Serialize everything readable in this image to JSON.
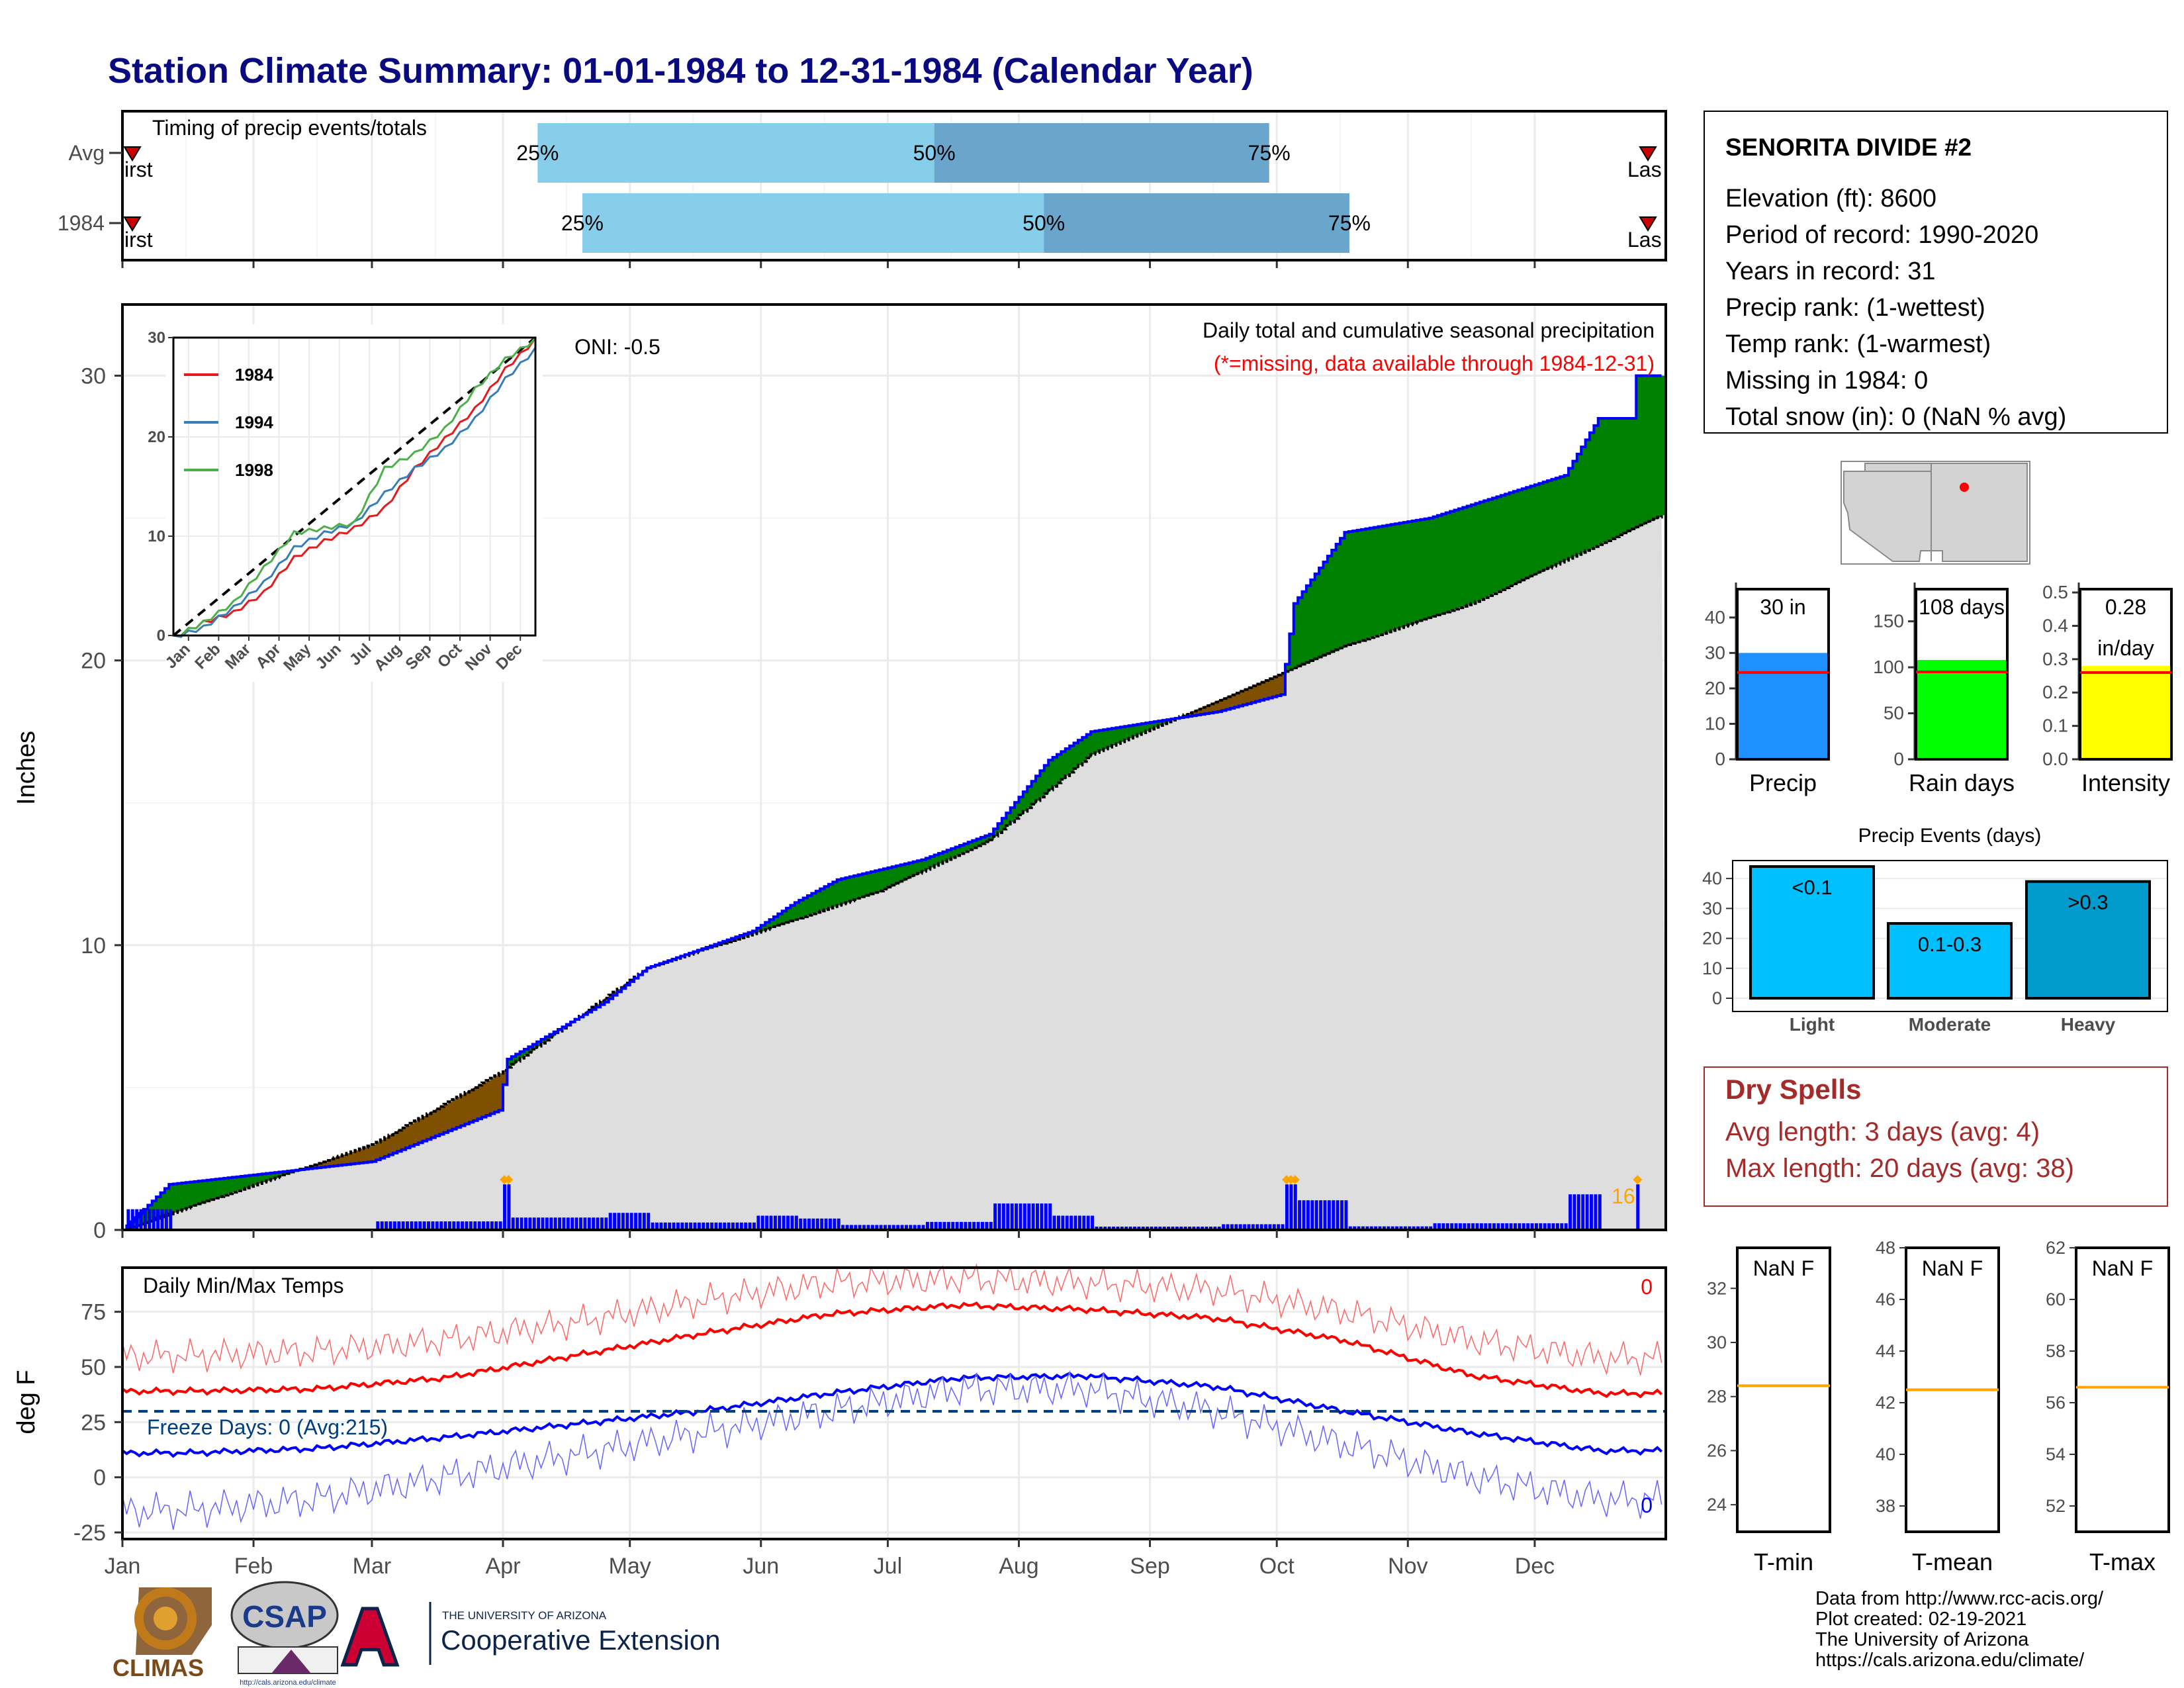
{
  "title": "Station Climate Summary: 01-01-1984 to 12-31-1984 (Calendar Year)",
  "colors": {
    "title": "#0a0a80",
    "blue": "#0000ff",
    "green": "#008000",
    "brown": "#7f5000",
    "light_blue": "#87ceeb",
    "mid_blue": "#6aa5cc",
    "red": "#ff0000",
    "orange": "#ffa500",
    "rain_green": "#00ff00",
    "yellow": "#ffff00",
    "sky": "#00bfff",
    "dark_red": "#a52a2a",
    "freeze": "#003f7f",
    "gray_fill": "#dedede"
  },
  "timing": {
    "title": "Timing of precip events/totals",
    "rows": [
      {
        "label": "Avg",
        "q25": 0.269,
        "q50": 0.526,
        "q75": 0.743,
        "p25": "25%",
        "p50": "50%",
        "p75": "75%",
        "first": "irst",
        "last": "Las"
      },
      {
        "label": "1984",
        "q25": 0.298,
        "q50": 0.597,
        "q75": 0.795,
        "p25": "25%",
        "p50": "50%",
        "p75": "75%",
        "first": "irst",
        "last": "Las"
      }
    ]
  },
  "main": {
    "ylabel": "Inches",
    "yticks": [
      "0",
      "10",
      "20",
      "30"
    ],
    "oni": "ONI: -0.5",
    "title": "Daily total and cumulative seasonal precipitation",
    "note": "(*=missing, data available through 1984-12-31)",
    "count_label": "16"
  },
  "inset": {
    "yticks": [
      "0",
      "10",
      "20",
      "30"
    ],
    "months": [
      "Jan",
      "Feb",
      "Mar",
      "Apr",
      "May",
      "Jun",
      "Jul",
      "Aug",
      "Sep",
      "Oct",
      "Nov",
      "Dec"
    ],
    "legend": [
      {
        "label": "1984",
        "color": "#e41a1c"
      },
      {
        "label": "1994",
        "color": "#377eb8"
      },
      {
        "label": "1998",
        "color": "#4daf4a"
      }
    ]
  },
  "temps": {
    "title": "Daily Min/Max Temps",
    "ylabel": "deg F",
    "yticks": [
      "-25",
      "0",
      "25",
      "50",
      "75"
    ],
    "freeze": "Freeze Days: 0 (Avg:215)",
    "count_max": "0",
    "count_min": "0"
  },
  "months": [
    "Jan",
    "Feb",
    "Mar",
    "Apr",
    "May",
    "Jun",
    "Jul",
    "Aug",
    "Sep",
    "Oct",
    "Nov",
    "Dec"
  ],
  "station": {
    "name": "SENORITA DIVIDE #2",
    "lines": [
      "Elevation (ft): 8600",
      "Period of record: 1990-2020",
      "Years in record: 31",
      "Precip rank:  (1-wettest)",
      "Temp rank:  (1-warmest)",
      "Missing in 1984: 0",
      "Total snow (in): 0 (NaN % avg)"
    ]
  },
  "mini_bars": [
    {
      "label": "Precip",
      "value_label": "30 in",
      "value_label2": "",
      "value": 30,
      "avg": 24.5,
      "ymax": 48,
      "ticks": [
        "0",
        "10",
        "20",
        "30",
        "40"
      ],
      "tickvals": [
        0,
        10,
        20,
        30,
        40
      ],
      "color": "#1e90ff"
    },
    {
      "label": "Rain days",
      "value_label": "108 days",
      "value_label2": "",
      "value": 108,
      "avg": 95,
      "ymax": 185,
      "ticks": [
        "0",
        "50",
        "100",
        "150"
      ],
      "tickvals": [
        0,
        50,
        100,
        150
      ],
      "color": "#00ff00"
    },
    {
      "label": "Intensity",
      "value_label": "0.28",
      "value_label2": "in/day",
      "value": 0.28,
      "avg": 0.26,
      "ymax": 0.51,
      "ticks": [
        "0.0",
        "0.1",
        "0.2",
        "0.3",
        "0.4",
        "0.5"
      ],
      "tickvals": [
        0,
        0.1,
        0.2,
        0.3,
        0.4,
        0.5
      ],
      "color": "#ffff00"
    }
  ],
  "events": {
    "title": "Precip Events (days)",
    "yticks": [
      "0",
      "10",
      "20",
      "30",
      "40"
    ],
    "bars": [
      {
        "label": "Light",
        "range": "<0.1",
        "value": 44,
        "color": "#00bfff"
      },
      {
        "label": "Moderate",
        "range": "0.1-0.3",
        "value": 25,
        "color": "#00bfff"
      },
      {
        "label": "Heavy",
        "range": ">0.3",
        "value": 39,
        "color": "#009acd"
      }
    ]
  },
  "dry": {
    "title": "Dry Spells",
    "avg": "Avg length: 3 days (avg: 4)",
    "max": "Max length: 20 days (avg: 38)"
  },
  "tbox": [
    {
      "label": "T-min",
      "value_label": "NaN F",
      "ticks": [
        "24",
        "26",
        "28",
        "30",
        "32"
      ],
      "tickvals": [
        24,
        26,
        28,
        30,
        32
      ],
      "ymin": 23,
      "ymax": 33.5,
      "avg": 28.4
    },
    {
      "label": "T-mean",
      "value_label": "NaN F",
      "ticks": [
        "38",
        "40",
        "42",
        "44",
        "46",
        "48"
      ],
      "tickvals": [
        38,
        40,
        42,
        44,
        46,
        48
      ],
      "ymin": 37,
      "ymax": 48,
      "avg": 42.5
    },
    {
      "label": "T-max",
      "value_label": "NaN F",
      "ticks": [
        "52",
        "54",
        "56",
        "58",
        "60",
        "62"
      ],
      "tickvals": [
        52,
        54,
        56,
        58,
        60,
        62
      ],
      "ymin": 51,
      "ymax": 62,
      "avg": 56.6
    }
  ],
  "footer": {
    "lines": [
      "Data from http://www.rcc-acis.org/",
      "Plot created: 02-19-2021",
      "The University of Arizona",
      "https://cals.arizona.edu/climate/"
    ],
    "climas": "CLIMAS",
    "csap": "CSAP",
    "csap_url": "http://cals.arizona.edu/climate",
    "ua_small": "THE UNIVERSITY OF ARIZONA",
    "ua_big": "Cooperative Extension"
  },
  "chart_data": [
    {
      "type": "area",
      "title": "Daily total and cumulative seasonal precipitation",
      "ylabel": "Inches",
      "ylim": [
        0,
        32.5
      ],
      "x": [
        "Jan",
        "Feb",
        "Mar",
        "Apr",
        "May",
        "Jun",
        "Jul",
        "Aug",
        "Sep",
        "Oct",
        "Nov",
        "Dec"
      ],
      "series": [
        {
          "name": "1984",
          "points": [
            [
              1,
              0
            ],
            [
              12,
              1.6
            ],
            [
              60,
              2.4
            ],
            [
              90,
              4.2
            ],
            [
              92,
              6
            ],
            [
              115,
              8
            ],
            [
              125,
              9.2
            ],
            [
              150,
              10.5
            ],
            [
              160,
              11.5
            ],
            [
              170,
              12.3
            ],
            [
              190,
              13
            ],
            [
              206,
              13.9
            ],
            [
              220,
              16.5
            ],
            [
              230,
              17.5
            ],
            [
              260,
              18.2
            ],
            [
              275,
              18.8
            ],
            [
              278,
              22
            ],
            [
              290,
              24.5
            ],
            [
              310,
              25
            ],
            [
              342,
              26.5
            ],
            [
              350,
              28.5
            ],
            [
              358,
              28.5
            ],
            [
              359,
              30
            ],
            [
              365,
              30
            ]
          ]
        },
        {
          "name": "",
          "points": [
            [
              1,
              0
            ],
            [
              60,
              3
            ],
            [
              90,
              5.5
            ],
            [
              125,
              9.2
            ],
            [
              150,
              10.4
            ],
            [
              180,
              11.9
            ],
            [
              206,
              13.7
            ],
            [
              230,
              16.7
            ],
            [
              260,
              18.6
            ],
            [
              290,
              20.5
            ],
            [
              320,
              22
            ],
            [
              365,
              25.1
            ]
          ]
        }
      ]
    },
    {
      "type": "line",
      "ylim": [
        0,
        30
      ],
      "x": [
        "Jan",
        "Feb",
        "Mar",
        "Apr",
        "May",
        "Jun",
        "Jul",
        "Aug",
        "Sep",
        "Oct",
        "Nov",
        "Dec"
      ],
      "series": [
        {
          "name": "1984",
          "values": [
            1.5,
            2.5,
            4.5,
            8,
            9.7,
            11,
            13,
            17,
            20,
            23,
            27,
            30
          ]
        },
        {
          "name": "1994",
          "values": [
            1,
            3,
            5.5,
            9,
            10.5,
            11.5,
            14.5,
            17,
            19,
            22,
            26,
            29
          ]
        },
        {
          "name": "1998",
          "values": [
            1.5,
            3.5,
            7,
            10.5,
            11,
            11.5,
            17,
            18.5,
            21,
            25,
            28,
            30
          ]
        }
      ]
    },
    {
      "type": "bar",
      "categories": [
        "Light",
        "Moderate",
        "Heavy"
      ],
      "values": [
        44,
        25,
        39
      ],
      "title": "Precip Events (days)",
      "ylim": [
        0,
        45
      ]
    },
    {
      "type": "bar",
      "categories": [
        "Precip",
        "Rain days",
        "Intensity"
      ],
      "values": [
        30,
        108,
        0.28
      ]
    },
    {
      "type": "line",
      "title": "Daily Min/Max Temps",
      "ylabel": "deg F",
      "ylim": [
        -28,
        95
      ],
      "x": [
        "Jan",
        "Feb",
        "Mar",
        "Apr",
        "May",
        "Jun",
        "Jul",
        "Aug",
        "Sep",
        "Oct",
        "Nov",
        "Dec"
      ],
      "series": [
        {
          "name": "",
          "values": [
            39,
            40,
            45,
            55,
            65,
            74,
            78,
            76,
            72,
            62,
            46,
            38
          ]
        },
        {
          "name": "",
          "values": [
            11,
            13,
            18,
            24,
            30,
            38,
            45,
            46,
            41,
            30,
            20,
            12
          ]
        },
        {
          "name": "",
          "values": [
            55,
            57,
            62,
            70,
            80,
            88,
            90,
            88,
            85,
            75,
            62,
            54
          ]
        },
        {
          "name": "",
          "values": [
            -15,
            -10,
            0,
            10,
            20,
            30,
            40,
            40,
            30,
            15,
            0,
            -10
          ]
        }
      ]
    }
  ]
}
